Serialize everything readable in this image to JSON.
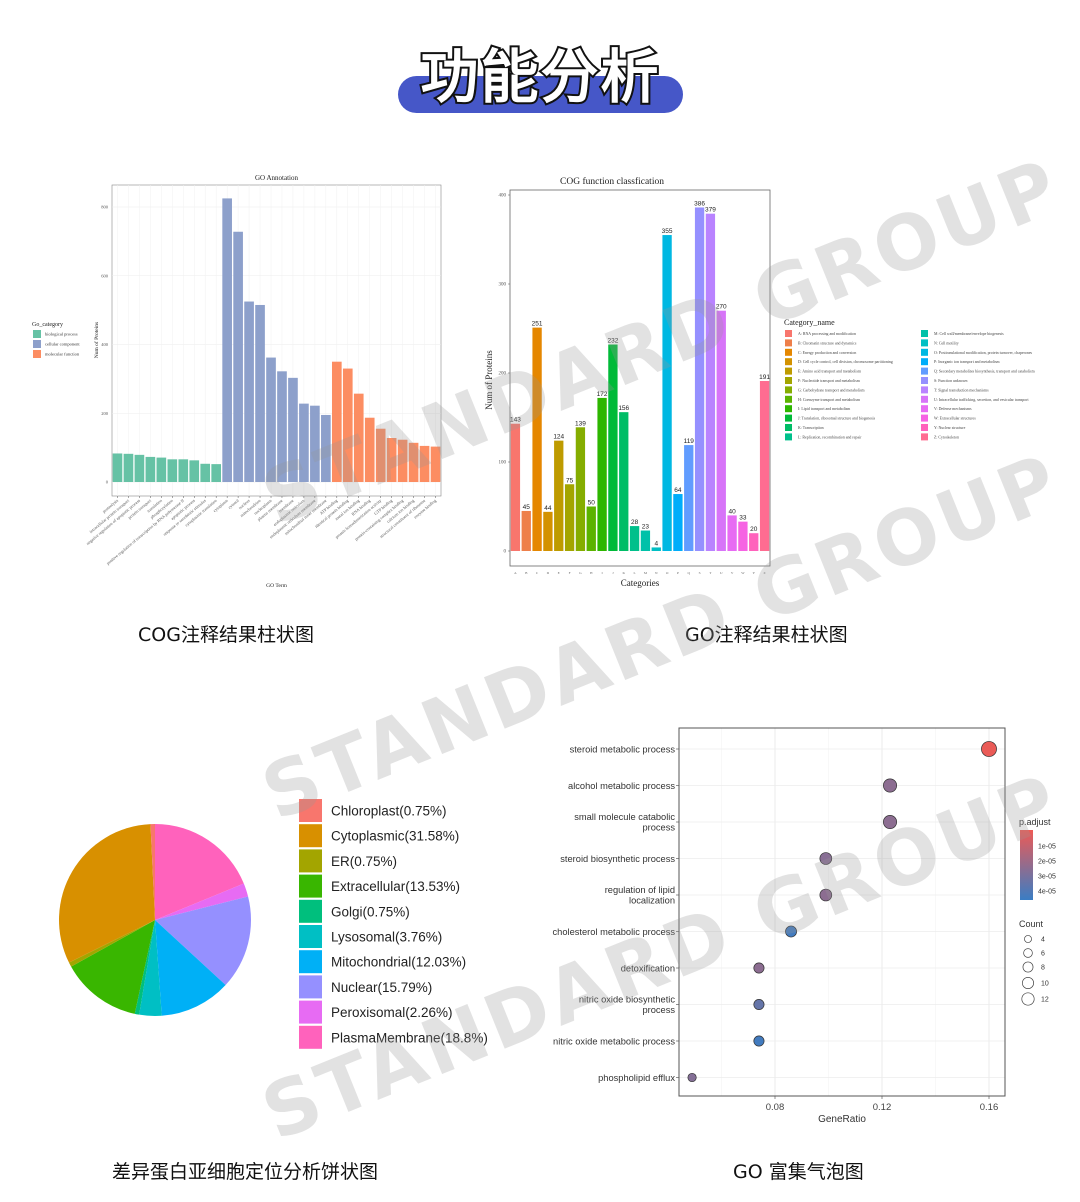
{
  "page_title": "功能分析",
  "captions": {
    "top_left": "COG注释结果柱状图",
    "top_right": "GO注释结果柱状图",
    "bottom_left": "差异蛋白亚细胞定位分析饼状图",
    "bottom_right": "GO 富集气泡图"
  },
  "watermark": "STANDARD GROUP",
  "chart_data": [
    {
      "type": "bar",
      "title": "GO Annotation",
      "xlabel": "GO Term",
      "ylabel": "Num of Proteins",
      "ylim": [
        0,
        800
      ],
      "yticks": [
        0,
        200,
        400,
        600,
        800
      ],
      "grid": true,
      "legend": {
        "title": "Go_category",
        "placement": "left"
      },
      "series": [
        {
          "name": "biological process",
          "color": "#66C2A5",
          "categories": [
            "proteolysis",
            "intracellular protein transport",
            "negative regulation of apoptotic process",
            "protein transport",
            "translation",
            "phosphorylation",
            "positive regulation of transcription by RNA polymerase II",
            "apoptotic process",
            "response to xenobiotic stimulus",
            "cytoplasmic translation"
          ],
          "values": [
            83,
            82,
            79,
            73,
            71,
            66,
            66,
            63,
            53,
            52
          ]
        },
        {
          "name": "cellular component",
          "color": "#8DA0CB",
          "categories": [
            "cytoplasm",
            "cytosol",
            "nucleus",
            "mitochondrion",
            "nucleoplasm",
            "plasma membrane",
            "membrane",
            "endoplasmic reticulum",
            "endoplasmic reticulum membrane",
            "mitochondrial inner membrane"
          ],
          "values": [
            825,
            728,
            525,
            515,
            362,
            322,
            303,
            228,
            222,
            195
          ]
        },
        {
          "name": "molecular function",
          "color": "#FC8D62",
          "categories": [
            "ATP binding",
            "identical protein binding",
            "metal ion binding",
            "RNA binding",
            "protein homodimerization activity",
            "GTP binding",
            "protein-containing complex binding",
            "calcium ion binding",
            "structural constituent of ribosome",
            "enzyme binding"
          ],
          "values": [
            350,
            330,
            257,
            187,
            155,
            128,
            123,
            114,
            105,
            103
          ]
        }
      ]
    },
    {
      "type": "bar",
      "title": "COG function classfication",
      "xlabel": "Categories",
      "ylabel": "Num of Proteins",
      "ylim": [
        0,
        400
      ],
      "yticks": [
        0,
        100,
        200,
        300,
        400
      ],
      "legend": {
        "title": "Category_name",
        "placement": "right"
      },
      "categories": [
        "A",
        "B",
        "C",
        "D",
        "E",
        "F",
        "G",
        "H",
        "I",
        "J",
        "K",
        "L",
        "M",
        "N",
        "O",
        "P",
        "Q",
        "S",
        "T",
        "U",
        "V",
        "W",
        "Y",
        "Z"
      ],
      "values": [
        143,
        45,
        251,
        44,
        124,
        75,
        139,
        50,
        172,
        232,
        156,
        28,
        23,
        4,
        355,
        64,
        119,
        386,
        379,
        270,
        40,
        33,
        20,
        191
      ],
      "colors": [
        "#F8766D",
        "#EE7F4A",
        "#E58700",
        "#D39200",
        "#BE9B00",
        "#A3A500",
        "#85AD00",
        "#5BB300",
        "#2DB600",
        "#00BA38",
        "#00BD66",
        "#00C08B",
        "#00C1A9",
        "#00BFC4",
        "#00B8E2",
        "#00ADFA",
        "#619CFF",
        "#9590FF",
        "#B983FF",
        "#D774F8",
        "#E76BF3",
        "#F663E3",
        "#FF62BC",
        "#FF6C91"
      ],
      "legend_entries": [
        "A: RNA processing and modification",
        "B: Chromatin structure and dynamics",
        "C: Energy production and conversion",
        "D: Cell cycle control, cell division, chromosome partitioning",
        "E: Amino acid transport and metabolism",
        "F: Nucleotide transport and metabolism",
        "G: Carbohydrate transport and metabolism",
        "H: Coenzyme transport and metabolism",
        "I: Lipid transport and metabolism",
        "J: Translation, ribosomal structure and biogenesis",
        "K: Transcription",
        "L: Replication, recombination and repair",
        "M: Cell wall/membrane/envelope biogenesis",
        "N: Cell motility",
        "O: Posttranslational modification, protein turnover, chaperones",
        "P: Inorganic ion transport and metabolism",
        "Q: Secondary metabolites biosynthesis, transport and catabolism",
        "S: Function unknown",
        "T: Signal transduction mechanisms",
        "U: Intracellular trafficking, secretion, and vesicular transport",
        "V: Defense mechanisms",
        "W: Extracellular structures",
        "Y: Nuclear structure",
        "Z: Cytoskeleton"
      ]
    },
    {
      "type": "pie",
      "legend": {
        "placement": "right"
      },
      "slices": [
        {
          "label": "Chloroplast(0.75%)",
          "value": 0.75,
          "color": "#F8766D"
        },
        {
          "label": "Cytoplasmic(31.58%)",
          "value": 31.58,
          "color": "#D89000"
        },
        {
          "label": "ER(0.75%)",
          "value": 0.75,
          "color": "#A3A500"
        },
        {
          "label": "Extracellular(13.53%)",
          "value": 13.53,
          "color": "#39B600"
        },
        {
          "label": "Golgi(0.75%)",
          "value": 0.75,
          "color": "#00BF7D"
        },
        {
          "label": "Lysosomal(3.76%)",
          "value": 3.76,
          "color": "#00BFC4"
        },
        {
          "label": "Mitochondrial(12.03%)",
          "value": 12.03,
          "color": "#00B0F6"
        },
        {
          "label": "Nuclear(15.79%)",
          "value": 15.79,
          "color": "#9590FF"
        },
        {
          "label": "Peroxisomal(2.26%)",
          "value": 2.26,
          "color": "#E76BF3"
        },
        {
          "label": "PlasmaMembrane(18.8%)",
          "value": 18.8,
          "color": "#FF62BC"
        }
      ]
    },
    {
      "type": "scatter",
      "xlabel": "GeneRatio",
      "xlim": [
        0.044,
        0.166
      ],
      "xticks": [
        "0.08",
        "0.12",
        "0.16"
      ],
      "grid": true,
      "color_scale": {
        "title": "p.adjust",
        "low_color": "#EE5A55",
        "high_color": "#3A7DC4",
        "ticks": [
          "1e-05",
          "2e-05",
          "3e-05",
          "4e-05"
        ]
      },
      "size_legend": {
        "title": "Count",
        "values": [
          4,
          6,
          8,
          10,
          12
        ]
      },
      "legend_placement": "right",
      "points": [
        {
          "term": "steroid metabolic process",
          "gene_ratio": 0.16,
          "count": 13,
          "p_adjust": 1e-06
        },
        {
          "term": "alcohol metabolic process",
          "gene_ratio": 0.123,
          "count": 10,
          "p_adjust": 2.5e-05
        },
        {
          "term": "small molecule catabolic process",
          "gene_ratio": 0.123,
          "count": 10,
          "p_adjust": 2.5e-05
        },
        {
          "term": "steroid biosynthetic process",
          "gene_ratio": 0.099,
          "count": 8,
          "p_adjust": 2.6e-05
        },
        {
          "term": "regulation of lipid localization",
          "gene_ratio": 0.099,
          "count": 8,
          "p_adjust": 2.5e-05
        },
        {
          "term": "cholesterol metabolic process",
          "gene_ratio": 0.086,
          "count": 7,
          "p_adjust": 4.4e-05
        },
        {
          "term": "detoxification",
          "gene_ratio": 0.074,
          "count": 6,
          "p_adjust": 2.5e-05
        },
        {
          "term": "nitric oxide biosynthetic process",
          "gene_ratio": 0.074,
          "count": 6,
          "p_adjust": 3.5e-05
        },
        {
          "term": "nitric oxide metabolic process",
          "gene_ratio": 0.074,
          "count": 6,
          "p_adjust": 4.4e-05
        },
        {
          "term": "phospholipid efflux",
          "gene_ratio": 0.049,
          "count": 4,
          "p_adjust": 2.7e-05
        }
      ]
    }
  ]
}
